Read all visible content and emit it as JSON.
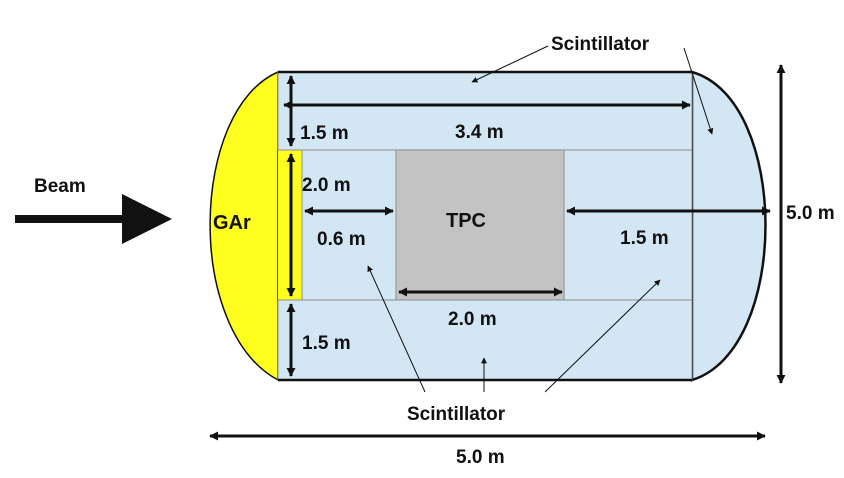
{
  "labels": {
    "scintillator_top": "Scintillator",
    "scintillator_bottom": "Scintillator",
    "beam": "Beam",
    "gar": "GAr",
    "tpc": "TPC",
    "dim_top_width": "3.4 m",
    "dim_top_height": "1.5 m",
    "dim_mid_height": "2.0 m",
    "dim_left_gap": "0.6 m",
    "dim_right_gap": "1.5 m",
    "dim_tpc_width": "2.0 m",
    "dim_bottom_height": "1.5 m",
    "dim_total_height": "5.0 m",
    "dim_total_width": "5.0 m"
  },
  "colors": {
    "scintillator_fill": "#d3e6f3",
    "gar_fill": "#ffff1f",
    "tpc_fill": "#c3c3c3",
    "outline": "#111111",
    "inner_line": "#8c8c8c",
    "arrow": "#111111"
  }
}
